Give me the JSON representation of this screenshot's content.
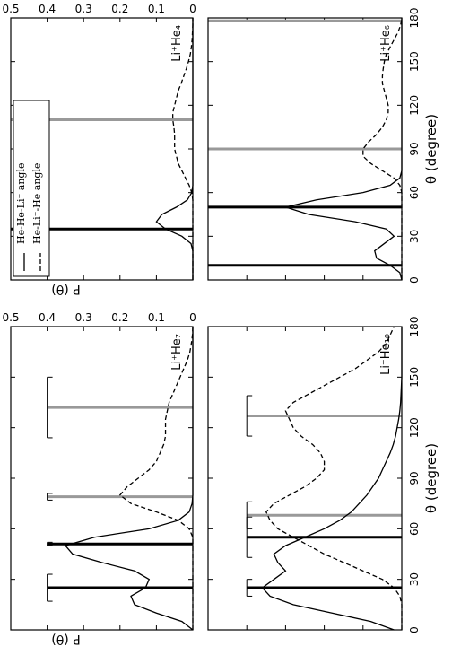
{
  "chart_data": [
    {
      "type": "line",
      "title": "Li⁺He₄",
      "ylabel": "P (θ)",
      "show_ytick_labels": true,
      "show_xtick_labels": false,
      "legend": "lower left",
      "xlim": [
        0,
        180
      ],
      "xticks": [
        0,
        30,
        60,
        90,
        120,
        150,
        180
      ],
      "ylim": [
        0,
        0.5
      ],
      "yticks": [
        0,
        0.1,
        0.2,
        0.3,
        0.4,
        0.5
      ],
      "x": [
        0,
        5,
        10,
        15,
        20,
        25,
        30,
        35,
        40,
        45,
        50,
        55,
        60,
        65,
        70,
        75,
        80,
        85,
        90,
        95,
        100,
        105,
        110,
        115,
        120,
        125,
        130,
        135,
        140,
        145,
        150,
        155,
        160,
        165,
        170,
        175,
        180
      ],
      "series": [
        {
          "name": "He-He-Li⁺ angle",
          "style": "solid",
          "color": "#000000",
          "values": [
            0,
            0,
            0,
            0,
            0,
            0.005,
            0.03,
            0.075,
            0.1,
            0.085,
            0.045,
            0.015,
            0.003,
            0,
            0,
            0,
            0,
            0,
            0,
            0,
            0,
            0,
            0,
            0,
            0,
            0,
            0,
            0,
            0,
            0,
            0,
            0,
            0,
            0,
            0,
            0,
            0
          ]
        },
        {
          "name": "He-Li⁺-He angle",
          "style": "dashed",
          "color": "#000000",
          "values": [
            0,
            0,
            0,
            0,
            0,
            0,
            0,
            0,
            0,
            0,
            0,
            0,
            0.003,
            0.01,
            0.02,
            0.03,
            0.04,
            0.045,
            0.05,
            0.05,
            0.05,
            0.052,
            0.055,
            0.055,
            0.05,
            0.045,
            0.04,
            0.032,
            0.025,
            0.018,
            0.012,
            0.007,
            0.004,
            0.002,
            0.001,
            0,
            0
          ]
        }
      ],
      "bars": [
        {
          "theta": 35,
          "height": 0.5,
          "color": "#000000"
        },
        {
          "theta": 110,
          "height": 0.5,
          "color": "#999999"
        }
      ]
    },
    {
      "type": "line",
      "title": "Li⁺He₆",
      "xlabel": "θ (degree)",
      "show_ytick_labels": false,
      "show_xtick_labels": true,
      "xlim": [
        0,
        180
      ],
      "xticks": [
        0,
        30,
        60,
        90,
        120,
        150,
        180
      ],
      "ylim": [
        0,
        0.5
      ],
      "yticks": [
        0,
        0.1,
        0.2,
        0.3,
        0.4,
        0.5
      ],
      "x": [
        0,
        5,
        10,
        15,
        20,
        25,
        30,
        35,
        40,
        45,
        50,
        55,
        60,
        65,
        70,
        75,
        80,
        85,
        90,
        95,
        100,
        105,
        110,
        115,
        120,
        125,
        130,
        135,
        140,
        145,
        150,
        155,
        160,
        165,
        170,
        175,
        180
      ],
      "series": [
        {
          "style": "solid",
          "color": "#000000",
          "values": [
            0,
            0.005,
            0.03,
            0.065,
            0.07,
            0.045,
            0.02,
            0.04,
            0.12,
            0.24,
            0.3,
            0.22,
            0.1,
            0.03,
            0.005,
            0,
            0,
            0,
            0,
            0,
            0,
            0,
            0,
            0,
            0,
            0,
            0,
            0,
            0,
            0,
            0,
            0,
            0,
            0,
            0,
            0,
            0
          ]
        },
        {
          "style": "dashed",
          "color": "#000000",
          "values": [
            0,
            0,
            0,
            0,
            0,
            0,
            0,
            0,
            0,
            0,
            0,
            0,
            0,
            0.005,
            0.02,
            0.05,
            0.08,
            0.1,
            0.1,
            0.085,
            0.065,
            0.05,
            0.04,
            0.035,
            0.035,
            0.04,
            0.045,
            0.05,
            0.05,
            0.048,
            0.045,
            0.04,
            0.03,
            0.02,
            0.01,
            0.003,
            0
          ]
        }
      ],
      "bars": [
        {
          "theta": 10,
          "height": 0.5,
          "color": "#000000"
        },
        {
          "theta": 50,
          "height": 0.5,
          "color": "#000000"
        },
        {
          "theta": 90,
          "height": 0.5,
          "color": "#999999"
        },
        {
          "theta": 178,
          "height": 0.5,
          "color": "#999999"
        }
      ]
    },
    {
      "type": "line",
      "title": "Li⁺He₇",
      "ylabel": "P (θ)",
      "show_ytick_labels": true,
      "show_xtick_labels": false,
      "xlim": [
        0,
        180
      ],
      "xticks": [
        0,
        30,
        60,
        90,
        120,
        150,
        180
      ],
      "ylim": [
        0,
        0.5
      ],
      "yticks": [
        0,
        0.1,
        0.2,
        0.3,
        0.4,
        0.5
      ],
      "x": [
        0,
        5,
        10,
        15,
        20,
        25,
        30,
        35,
        40,
        45,
        50,
        55,
        60,
        65,
        70,
        75,
        80,
        85,
        90,
        95,
        100,
        105,
        110,
        115,
        120,
        125,
        130,
        135,
        140,
        145,
        150,
        155,
        160,
        165,
        170,
        175,
        180
      ],
      "series": [
        {
          "style": "solid",
          "color": "#000000",
          "values": [
            0,
            0.03,
            0.1,
            0.16,
            0.17,
            0.13,
            0.12,
            0.16,
            0.25,
            0.33,
            0.35,
            0.27,
            0.12,
            0.04,
            0.01,
            0.002,
            0,
            0,
            0,
            0,
            0,
            0,
            0,
            0,
            0,
            0,
            0,
            0,
            0,
            0,
            0,
            0,
            0,
            0,
            0,
            0,
            0
          ]
        },
        {
          "style": "dashed",
          "color": "#000000",
          "values": [
            0,
            0,
            0,
            0,
            0,
            0,
            0,
            0,
            0,
            0,
            0,
            0,
            0.01,
            0.04,
            0.1,
            0.17,
            0.2,
            0.18,
            0.15,
            0.12,
            0.1,
            0.09,
            0.08,
            0.075,
            0.075,
            0.075,
            0.07,
            0.065,
            0.055,
            0.045,
            0.035,
            0.025,
            0.015,
            0.008,
            0.004,
            0.001,
            0
          ]
        }
      ],
      "bars": [
        {
          "theta": 25,
          "height": 0.4,
          "error": 8,
          "color": "#000000"
        },
        {
          "theta": 51,
          "height": 0.4,
          "error": 1,
          "color": "#000000"
        },
        {
          "theta": 79,
          "height": 0.4,
          "error": 2,
          "color": "#999999"
        },
        {
          "theta": 132,
          "height": 0.4,
          "error": 18,
          "color": "#999999"
        }
      ]
    },
    {
      "type": "line",
      "title": "Li⁺He₁₀",
      "xlabel": "θ (degree)",
      "show_ytick_labels": false,
      "show_xtick_labels": true,
      "xlim": [
        0,
        180
      ],
      "xticks": [
        0,
        30,
        60,
        90,
        120,
        150,
        180
      ],
      "ylim": [
        0,
        0.5
      ],
      "yticks": [
        0,
        0.1,
        0.2,
        0.3,
        0.4,
        0.5
      ],
      "x": [
        0,
        5,
        10,
        15,
        20,
        25,
        30,
        35,
        40,
        45,
        50,
        55,
        60,
        65,
        70,
        75,
        80,
        85,
        90,
        95,
        100,
        105,
        110,
        115,
        120,
        125,
        130,
        135,
        140,
        145,
        150,
        155,
        160,
        165,
        170,
        175,
        180
      ],
      "series": [
        {
          "style": "solid",
          "color": "#000000",
          "values": [
            0.02,
            0.08,
            0.18,
            0.28,
            0.34,
            0.36,
            0.33,
            0.3,
            0.32,
            0.33,
            0.3,
            0.25,
            0.2,
            0.16,
            0.13,
            0.11,
            0.09,
            0.075,
            0.06,
            0.05,
            0.04,
            0.03,
            0.022,
            0.016,
            0.012,
            0.008,
            0.005,
            0.003,
            0.002,
            0.001,
            0,
            0,
            0,
            0,
            0,
            0,
            0
          ]
        },
        {
          "style": "dashed",
          "color": "#000000",
          "values": [
            0,
            0,
            0,
            0,
            0.005,
            0.02,
            0.05,
            0.1,
            0.15,
            0.2,
            0.24,
            0.28,
            0.32,
            0.34,
            0.35,
            0.33,
            0.29,
            0.25,
            0.22,
            0.2,
            0.2,
            0.21,
            0.23,
            0.26,
            0.28,
            0.29,
            0.3,
            0.28,
            0.24,
            0.2,
            0.16,
            0.12,
            0.09,
            0.06,
            0.04,
            0.03,
            0.02
          ]
        }
      ],
      "bars": [
        {
          "theta": 25,
          "height": 0.4,
          "error": 5,
          "color": "#000000"
        },
        {
          "theta": 55,
          "height": 0.4,
          "error": 12,
          "color": "#000000"
        },
        {
          "theta": 68,
          "height": 0.4,
          "error": 8,
          "color": "#999999"
        },
        {
          "theta": 127,
          "height": 0.4,
          "error": 12,
          "color": "#999999"
        }
      ]
    }
  ]
}
